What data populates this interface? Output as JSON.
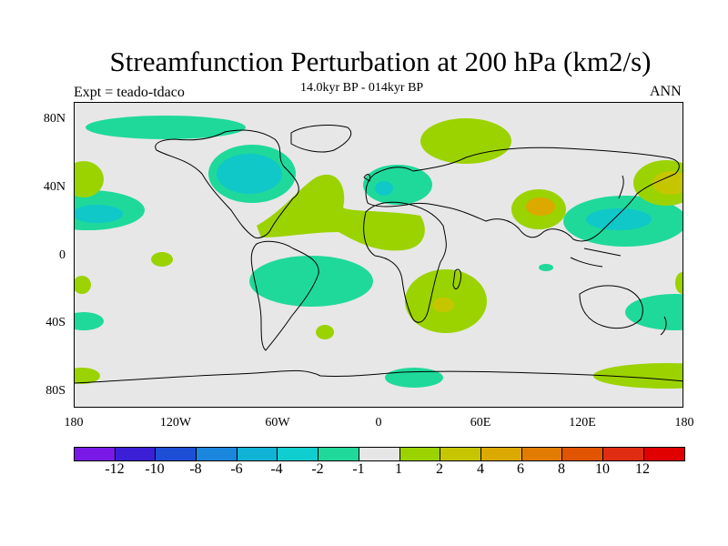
{
  "title": "Streamfunction Perturbation at 200 hPa (km2/s)",
  "left_label": "Expt = teado-tdaco",
  "center_label": "14.0kyr BP - 014kyr BP",
  "right_label": "ANN",
  "map": {
    "lat_labels": [
      "80N",
      "40N",
      "0",
      "40S",
      "80S"
    ],
    "lon_labels": [
      "180",
      "120W",
      "60W",
      "0",
      "60E",
      "120E",
      "180"
    ],
    "colors": {
      "background": "#e7e7e7",
      "neg2": "#1fd99a",
      "neg4": "#10c8c8",
      "pos2": "#9bd300",
      "pos4": "#c6c600",
      "pos6": "#dca900"
    }
  },
  "colorbar": {
    "colors": [
      "#7a19e6",
      "#3b1fd6",
      "#1d4fd6",
      "#1b86dd",
      "#10b3d6",
      "#10cdd0",
      "#1fd99a",
      "#e6e6e6",
      "#9bd300",
      "#c6c600",
      "#dca900",
      "#e17c00",
      "#e15400",
      "#e02c10",
      "#e00000"
    ],
    "labels": [
      "-12",
      "-10",
      "-8",
      "-6",
      "-4",
      "-2",
      "-1",
      "1",
      "2",
      "4",
      "6",
      "8",
      "10",
      "12"
    ]
  }
}
